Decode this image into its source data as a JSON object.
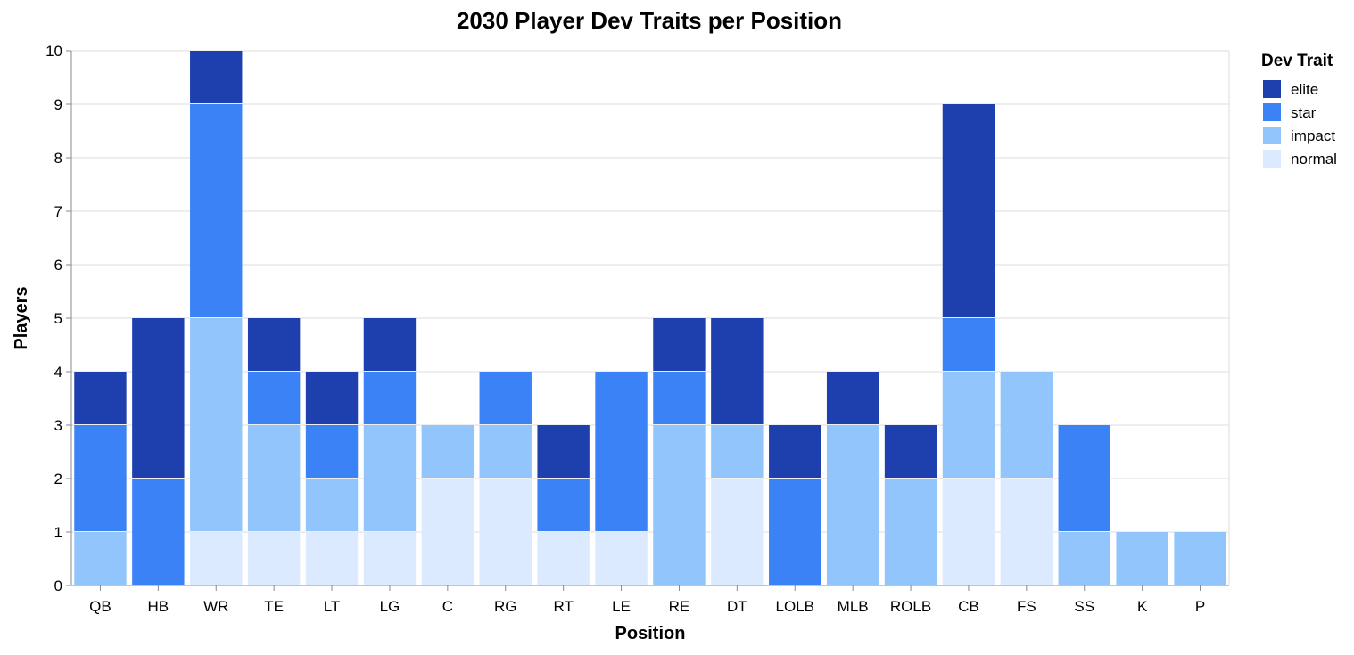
{
  "chart_data": {
    "type": "bar",
    "stacked": true,
    "title": "2030 Player Dev Traits per Position",
    "xlabel": "Position",
    "ylabel": "Players",
    "ylim": [
      0,
      10
    ],
    "yticks": [
      0,
      1,
      2,
      3,
      4,
      5,
      6,
      7,
      8,
      9,
      10
    ],
    "grid": true,
    "legend": {
      "title": "Dev Trait",
      "position": "right"
    },
    "categories": [
      "QB",
      "HB",
      "WR",
      "TE",
      "LT",
      "LG",
      "C",
      "RG",
      "RT",
      "LE",
      "RE",
      "DT",
      "LOLB",
      "MLB",
      "ROLB",
      "CB",
      "FS",
      "SS",
      "K",
      "P"
    ],
    "series": [
      {
        "name": "normal",
        "color": "#dbeafe",
        "values": [
          0,
          0,
          1,
          1,
          1,
          1,
          2,
          2,
          1,
          1,
          0,
          2,
          0,
          0,
          0,
          2,
          2,
          0,
          0,
          0
        ]
      },
      {
        "name": "impact",
        "color": "#93c5fd",
        "values": [
          1,
          0,
          4,
          2,
          1,
          2,
          1,
          1,
          0,
          0,
          3,
          1,
          0,
          3,
          2,
          2,
          2,
          1,
          1,
          1
        ]
      },
      {
        "name": "star",
        "color": "#3b82f6",
        "values": [
          2,
          2,
          4,
          1,
          1,
          1,
          0,
          1,
          1,
          3,
          1,
          0,
          2,
          0,
          0,
          1,
          0,
          2,
          0,
          0
        ]
      },
      {
        "name": "elite",
        "color": "#1e40af",
        "values": [
          1,
          3,
          1,
          1,
          1,
          1,
          0,
          0,
          1,
          0,
          1,
          2,
          1,
          1,
          1,
          4,
          0,
          0,
          0,
          0
        ]
      }
    ],
    "legend_order": [
      "elite",
      "star",
      "impact",
      "normal"
    ]
  }
}
